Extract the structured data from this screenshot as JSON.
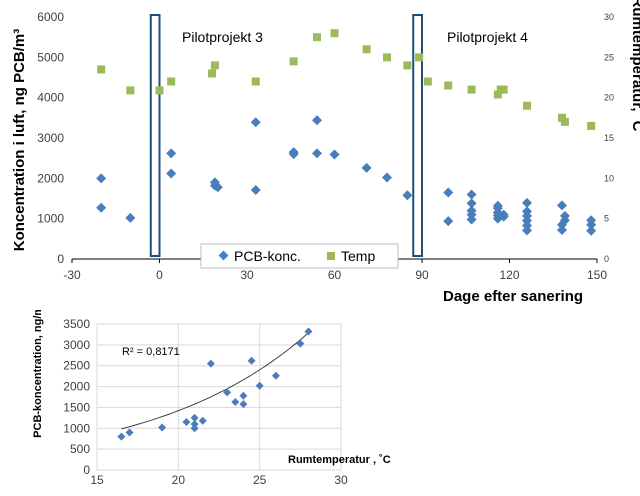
{
  "chart_data": [
    {
      "type": "scatter",
      "xlabel": "Dage efter sanering",
      "ylabel": "Koncentration i luft, ng PCB/m³",
      "y2label": "Rumtemperatur, ˚C",
      "xlim": [
        -30,
        150
      ],
      "ylim": [
        0,
        6000
      ],
      "y2lim": [
        0,
        30
      ],
      "x_ticks": [
        "-30",
        "0",
        "30",
        "60",
        "90",
        "120",
        "150"
      ],
      "y_ticks": [
        "0",
        "1000",
        "2000",
        "3000",
        "4000",
        "5000",
        "6000"
      ],
      "y2_ticks": [
        "0",
        "5",
        "10",
        "15",
        "20",
        "25",
        "30"
      ],
      "grid": false,
      "legend": "bottom-center",
      "annotations": [
        {
          "text": "Pilotprojekt 3",
          "x_range": [
            -3,
            0
          ]
        },
        {
          "text": "Pilotprojekt 4",
          "x_range": [
            87,
            90
          ]
        }
      ],
      "series": [
        {
          "name": "PCB-konc.",
          "color": "#4a7ebb",
          "marker": "diamond",
          "axis": "left",
          "points": [
            [
              -20,
              1270
            ],
            [
              -20,
              2000
            ],
            [
              -10,
              1020
            ],
            [
              4,
              2620
            ],
            [
              4,
              2120
            ],
            [
              19,
              1900
            ],
            [
              19,
              1820
            ],
            [
              20,
              1780
            ],
            [
              33,
              3390
            ],
            [
              33,
              1710
            ],
            [
              46,
              2650
            ],
            [
              46,
              2600
            ],
            [
              54,
              3440
            ],
            [
              54,
              2620
            ],
            [
              60,
              2590
            ],
            [
              71,
              2260
            ],
            [
              78,
              2020
            ],
            [
              85,
              1580
            ],
            [
              99,
              1650
            ],
            [
              99,
              940
            ],
            [
              107,
              1600
            ],
            [
              107,
              1380
            ],
            [
              107,
              1200
            ],
            [
              107,
              1100
            ],
            [
              107,
              980
            ],
            [
              116,
              1320
            ],
            [
              116,
              1260
            ],
            [
              116,
              1150
            ],
            [
              116,
              1080
            ],
            [
              116,
              1000
            ],
            [
              118,
              1100
            ],
            [
              118,
              1050
            ],
            [
              126,
              1390
            ],
            [
              126,
              1180
            ],
            [
              126,
              1070
            ],
            [
              126,
              950
            ],
            [
              126,
              830
            ],
            [
              126,
              710
            ],
            [
              138,
              1330
            ],
            [
              138,
              850
            ],
            [
              138,
              720
            ],
            [
              139,
              1070
            ],
            [
              139,
              960
            ],
            [
              148,
              960
            ],
            [
              148,
              850
            ],
            [
              148,
              700
            ]
          ]
        },
        {
          "name": "Temp",
          "color": "#9bbb59",
          "marker": "square",
          "axis": "right",
          "points": [
            [
              -20,
              23.5
            ],
            [
              -10,
              20.9
            ],
            [
              0,
              20.9
            ],
            [
              4,
              22.0
            ],
            [
              18,
              23.0
            ],
            [
              19,
              24.0
            ],
            [
              33,
              22.0
            ],
            [
              46,
              24.5
            ],
            [
              54,
              27.5
            ],
            [
              60,
              28.0
            ],
            [
              71,
              26.0
            ],
            [
              78,
              25.0
            ],
            [
              85,
              24.0
            ],
            [
              89,
              25.0
            ],
            [
              92,
              22.0
            ],
            [
              99,
              21.5
            ],
            [
              107,
              21.0
            ],
            [
              116,
              20.4
            ],
            [
              117,
              21.0
            ],
            [
              118,
              21.0
            ],
            [
              126,
              19.0
            ],
            [
              138,
              17.5
            ],
            [
              139,
              17.0
            ],
            [
              148,
              16.5
            ]
          ]
        }
      ]
    },
    {
      "type": "scatter",
      "xlabel": "Rumtemperatur , ˚C",
      "ylabel": "PCB-koncentration, ng/m³",
      "xlim": [
        15,
        30
      ],
      "ylim": [
        0,
        3500
      ],
      "x_ticks": [
        "15",
        "20",
        "25",
        "30"
      ],
      "y_ticks": [
        "0",
        "500",
        "1000",
        "1500",
        "2000",
        "2500",
        "3000",
        "3500"
      ],
      "grid": true,
      "annotations": [
        {
          "text": "R² = 0,8171"
        }
      ],
      "series": [
        {
          "color": "#4a7ebb",
          "marker": "diamond",
          "points": [
            [
              16.5,
              800
            ],
            [
              17.0,
              900
            ],
            [
              19.0,
              1020
            ],
            [
              20.5,
              1150
            ],
            [
              21.0,
              1250
            ],
            [
              21.0,
              1100
            ],
            [
              21.0,
              1000
            ],
            [
              21.5,
              1180
            ],
            [
              22.0,
              2550
            ],
            [
              23.0,
              1860
            ],
            [
              23.5,
              1630
            ],
            [
              24.0,
              1780
            ],
            [
              24.0,
              1580
            ],
            [
              24.5,
              2620
            ],
            [
              25.0,
              2020
            ],
            [
              26.0,
              2260
            ],
            [
              27.5,
              3030
            ],
            [
              28.0,
              3320
            ]
          ],
          "trendline": {
            "type": "exponential",
            "a": 174.8,
            "b": 0.1048,
            "x_range": [
              16.5,
              28
            ]
          }
        }
      ]
    }
  ]
}
